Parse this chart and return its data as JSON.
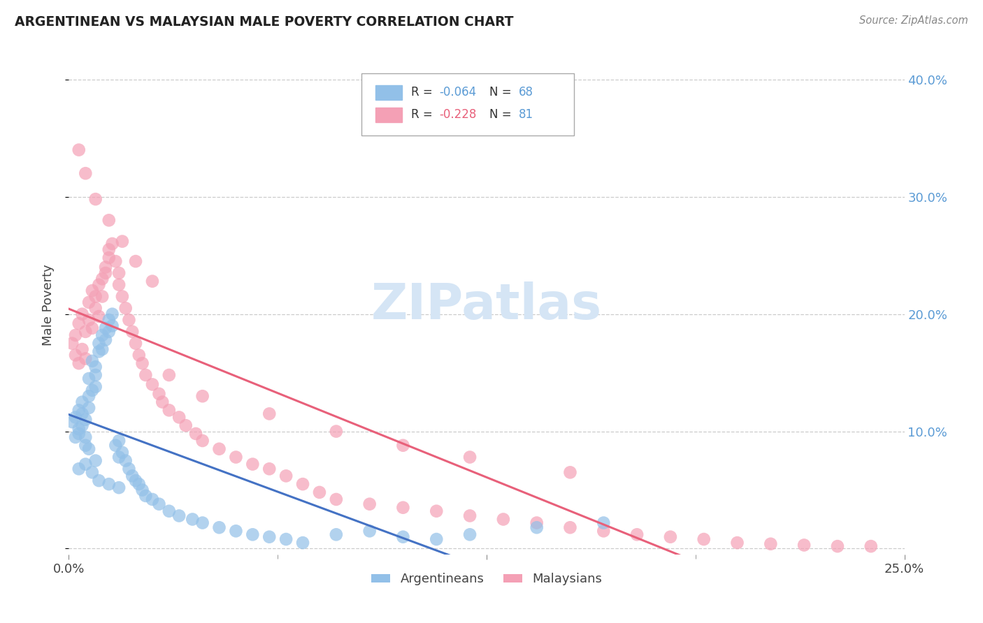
{
  "title": "ARGENTINEAN VS MALAYSIAN MALE POVERTY CORRELATION CHART",
  "source": "Source: ZipAtlas.com",
  "ylabel": "Male Poverty",
  "xlim": [
    0.0,
    0.25
  ],
  "ylim": [
    -0.005,
    0.42
  ],
  "argentina_R": -0.064,
  "argentina_N": 68,
  "malaysia_R": -0.228,
  "malaysia_N": 81,
  "argentina_color": "#92C0E8",
  "malaysia_color": "#F4A0B5",
  "argentina_line_color": "#4472C4",
  "malaysia_line_color": "#E8607A",
  "watermark_color": "#D5E5F5",
  "background_color": "#FFFFFF",
  "grid_color": "#CCCCCC",
  "tick_color": "#5B9BD5",
  "argentina_scatter_x": [
    0.001,
    0.002,
    0.002,
    0.003,
    0.003,
    0.003,
    0.004,
    0.004,
    0.004,
    0.005,
    0.005,
    0.005,
    0.006,
    0.006,
    0.006,
    0.007,
    0.007,
    0.008,
    0.008,
    0.008,
    0.009,
    0.009,
    0.01,
    0.01,
    0.011,
    0.011,
    0.012,
    0.012,
    0.013,
    0.013,
    0.014,
    0.015,
    0.015,
    0.016,
    0.017,
    0.018,
    0.019,
    0.02,
    0.021,
    0.022,
    0.023,
    0.025,
    0.027,
    0.03,
    0.033,
    0.037,
    0.04,
    0.045,
    0.05,
    0.055,
    0.06,
    0.065,
    0.07,
    0.08,
    0.09,
    0.1,
    0.11,
    0.12,
    0.14,
    0.16,
    0.003,
    0.005,
    0.007,
    0.009,
    0.012,
    0.015,
    0.008,
    0.006
  ],
  "argentina_scatter_y": [
    0.108,
    0.095,
    0.112,
    0.102,
    0.118,
    0.098,
    0.115,
    0.105,
    0.125,
    0.11,
    0.095,
    0.088,
    0.12,
    0.13,
    0.145,
    0.135,
    0.16,
    0.148,
    0.138,
    0.155,
    0.168,
    0.175,
    0.182,
    0.17,
    0.188,
    0.178,
    0.195,
    0.185,
    0.2,
    0.19,
    0.088,
    0.078,
    0.092,
    0.082,
    0.075,
    0.068,
    0.062,
    0.058,
    0.055,
    0.05,
    0.045,
    0.042,
    0.038,
    0.032,
    0.028,
    0.025,
    0.022,
    0.018,
    0.015,
    0.012,
    0.01,
    0.008,
    0.005,
    0.012,
    0.015,
    0.01,
    0.008,
    0.012,
    0.018,
    0.022,
    0.068,
    0.072,
    0.065,
    0.058,
    0.055,
    0.052,
    0.075,
    0.085
  ],
  "malaysia_scatter_x": [
    0.001,
    0.002,
    0.002,
    0.003,
    0.003,
    0.004,
    0.004,
    0.005,
    0.005,
    0.006,
    0.006,
    0.007,
    0.007,
    0.008,
    0.008,
    0.009,
    0.009,
    0.01,
    0.01,
    0.011,
    0.011,
    0.012,
    0.012,
    0.013,
    0.014,
    0.015,
    0.015,
    0.016,
    0.017,
    0.018,
    0.019,
    0.02,
    0.021,
    0.022,
    0.023,
    0.025,
    0.027,
    0.028,
    0.03,
    0.033,
    0.035,
    0.038,
    0.04,
    0.045,
    0.05,
    0.055,
    0.06,
    0.065,
    0.07,
    0.075,
    0.08,
    0.09,
    0.1,
    0.11,
    0.12,
    0.13,
    0.14,
    0.15,
    0.16,
    0.17,
    0.18,
    0.19,
    0.2,
    0.21,
    0.22,
    0.23,
    0.24,
    0.003,
    0.005,
    0.008,
    0.012,
    0.016,
    0.02,
    0.025,
    0.03,
    0.04,
    0.06,
    0.08,
    0.1,
    0.12,
    0.15
  ],
  "malaysia_scatter_y": [
    0.175,
    0.165,
    0.182,
    0.158,
    0.192,
    0.17,
    0.2,
    0.162,
    0.185,
    0.195,
    0.21,
    0.188,
    0.22,
    0.205,
    0.215,
    0.198,
    0.225,
    0.23,
    0.215,
    0.24,
    0.235,
    0.248,
    0.255,
    0.26,
    0.245,
    0.225,
    0.235,
    0.215,
    0.205,
    0.195,
    0.185,
    0.175,
    0.165,
    0.158,
    0.148,
    0.14,
    0.132,
    0.125,
    0.118,
    0.112,
    0.105,
    0.098,
    0.092,
    0.085,
    0.078,
    0.072,
    0.068,
    0.062,
    0.055,
    0.048,
    0.042,
    0.038,
    0.035,
    0.032,
    0.028,
    0.025,
    0.022,
    0.018,
    0.015,
    0.012,
    0.01,
    0.008,
    0.005,
    0.004,
    0.003,
    0.002,
    0.002,
    0.34,
    0.32,
    0.298,
    0.28,
    0.262,
    0.245,
    0.228,
    0.148,
    0.13,
    0.115,
    0.1,
    0.088,
    0.078,
    0.065
  ],
  "xtick_positions": [
    0.0,
    0.125,
    0.25
  ],
  "xtick_labels": [
    "0.0%",
    "",
    "25.0%"
  ],
  "ytick_positions": [
    0.0,
    0.1,
    0.2,
    0.3,
    0.4
  ],
  "ytick_labels": [
    "",
    "10.0%",
    "20.0%",
    "30.0%",
    "40.0%"
  ],
  "argentina_line_xmax": 0.17,
  "malaysia_line_xmax": 0.24
}
